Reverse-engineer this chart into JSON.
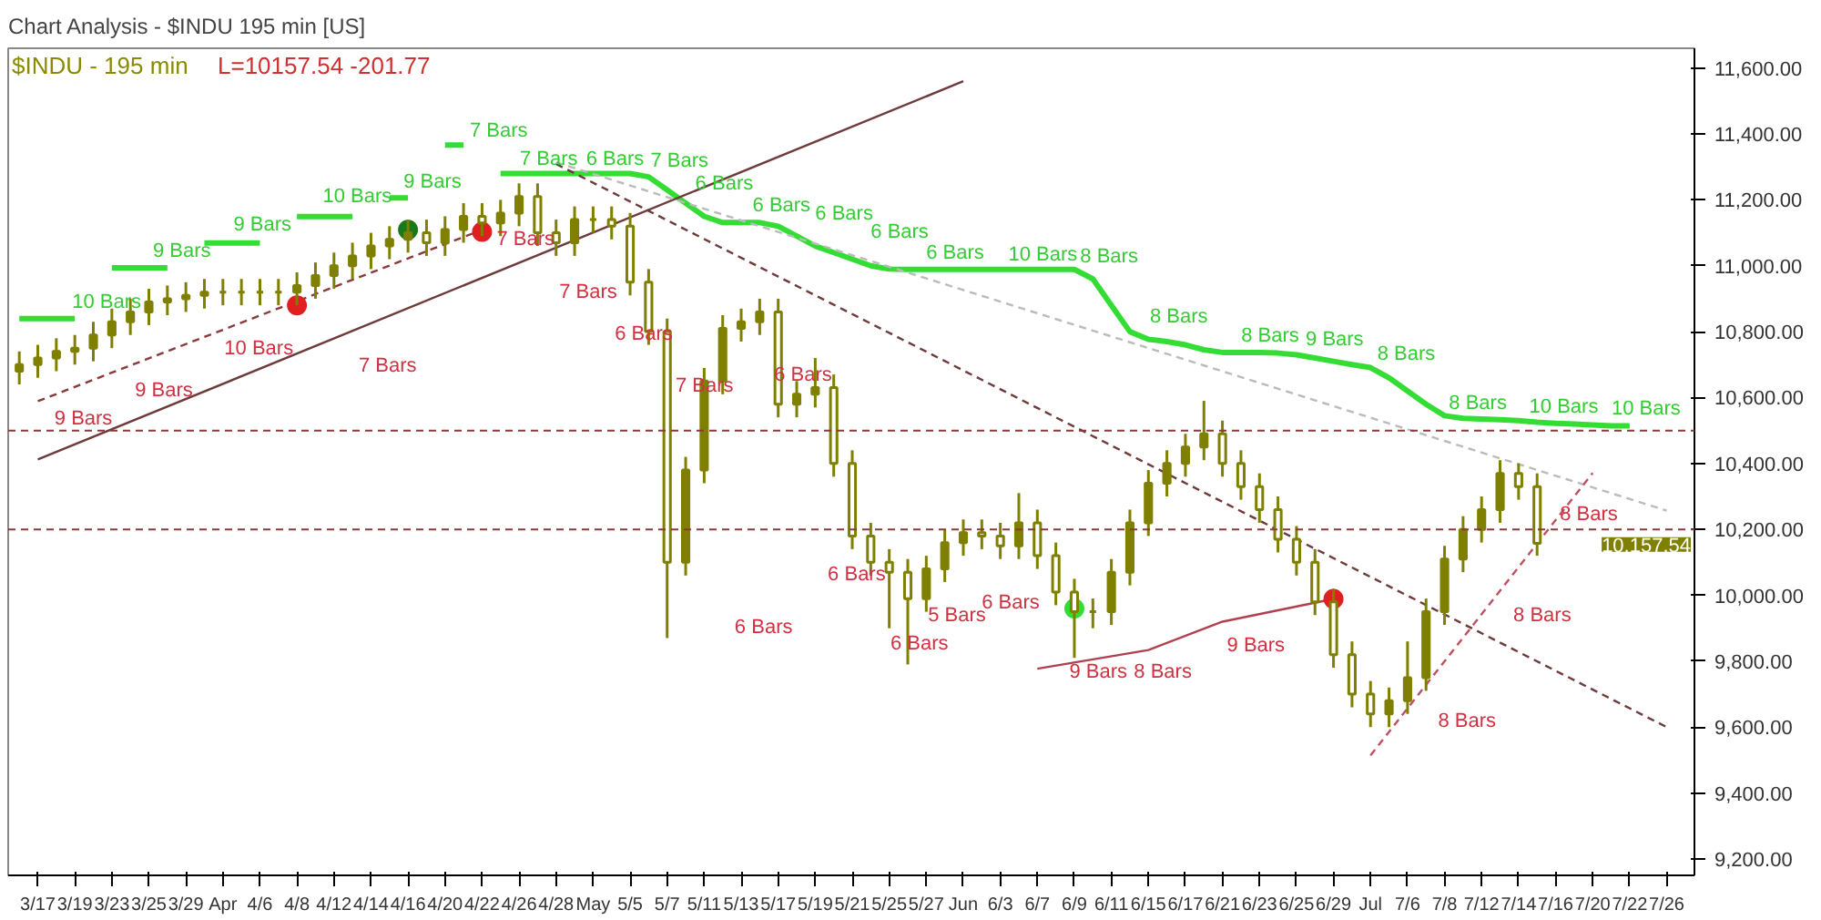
{
  "chart_data": {
    "type": "candlestick",
    "title": "Chart Analysis - $INDU 195 min [US]",
    "subtitle": "$INDU - 195 min",
    "categories": [
      null,
      "3/17",
      null,
      "3/19",
      null,
      "3/23",
      null,
      "3/25",
      null,
      "3/29",
      null,
      "Apr",
      null,
      "4/6",
      null,
      "4/8",
      null,
      "4/12",
      null,
      "4/14",
      null,
      "4/16",
      null,
      "4/20",
      null,
      "4/22",
      null,
      "4/26",
      null,
      "4/28",
      null,
      "May",
      null,
      "5/5",
      null,
      "5/7",
      null,
      "5/11",
      null,
      "5/13",
      null,
      "5/17",
      null,
      "5/19",
      null,
      "5/21",
      null,
      "5/25",
      null,
      "5/27",
      null,
      "Jun",
      null,
      "6/3",
      null,
      "6/7",
      null,
      "6/9",
      null,
      "6/11",
      null,
      "6/15",
      null,
      "6/17",
      null,
      "6/21",
      null,
      "6/23",
      null,
      "6/25",
      null,
      "6/29",
      null,
      "Jul",
      null,
      "7/6",
      null,
      "7/8",
      null,
      "7/12",
      null,
      "7/14",
      null,
      "7/16",
      null,
      "7/20",
      null,
      "7/22",
      null,
      "7/26",
      null
    ],
    "color": "#7f7f00",
    "ohlc": [
      [
        10680,
        10740,
        10640,
        10700
      ],
      [
        10700,
        10760,
        10660,
        10720
      ],
      [
        10720,
        10780,
        10680,
        10740
      ],
      [
        10740,
        10790,
        10700,
        10750
      ],
      [
        10750,
        10830,
        10710,
        10790
      ],
      [
        10790,
        10870,
        10750,
        10830
      ],
      [
        10830,
        10900,
        10790,
        10860
      ],
      [
        10860,
        10930,
        10820,
        10890
      ],
      [
        10890,
        10940,
        10850,
        10900
      ],
      [
        10900,
        10950,
        10860,
        10910
      ],
      [
        10910,
        10960,
        10870,
        10920
      ],
      [
        10920,
        10960,
        10880,
        10920
      ],
      [
        10920,
        10960,
        10880,
        10920
      ],
      [
        10920,
        10960,
        10880,
        10920
      ],
      [
        10920,
        10960,
        10880,
        10920
      ],
      [
        10920,
        10980,
        10880,
        10940
      ],
      [
        10940,
        11010,
        10900,
        10970
      ],
      [
        10970,
        11040,
        10930,
        11000
      ],
      [
        11000,
        11070,
        10960,
        11030
      ],
      [
        11030,
        11100,
        10990,
        11060
      ],
      [
        11060,
        11120,
        11020,
        11080
      ],
      [
        11080,
        11140,
        11040,
        11100
      ],
      [
        11100,
        11140,
        11030,
        11070
      ],
      [
        11070,
        11150,
        11030,
        11110
      ],
      [
        11110,
        11190,
        11070,
        11150
      ],
      [
        11150,
        11190,
        11090,
        11130
      ],
      [
        11130,
        11200,
        11090,
        11160
      ],
      [
        11160,
        11250,
        11120,
        11210
      ],
      [
        11210,
        11250,
        11060,
        11100
      ],
      [
        11100,
        11140,
        11030,
        11070
      ],
      [
        11070,
        11180,
        11030,
        11140
      ],
      [
        11140,
        11180,
        11100,
        11140
      ],
      [
        11140,
        11180,
        11080,
        11120
      ],
      [
        11120,
        11160,
        10910,
        10950
      ],
      [
        10950,
        10990,
        10760,
        10800
      ],
      [
        10800,
        10840,
        9870,
        10100
      ],
      [
        10100,
        10420,
        10060,
        10380
      ],
      [
        10380,
        10690,
        10340,
        10650
      ],
      [
        10650,
        10850,
        10610,
        10810
      ],
      [
        10810,
        10870,
        10770,
        10830
      ],
      [
        10830,
        10900,
        10790,
        10860
      ],
      [
        10860,
        10900,
        10540,
        10580
      ],
      [
        10580,
        10650,
        10540,
        10610
      ],
      [
        10610,
        10720,
        10570,
        10630
      ],
      [
        10630,
        10670,
        10360,
        10400
      ],
      [
        10400,
        10440,
        10140,
        10180
      ],
      [
        10180,
        10220,
        10060,
        10100
      ],
      [
        10100,
        10140,
        9900,
        10070
      ],
      [
        10070,
        10110,
        9790,
        9990
      ],
      [
        9990,
        10120,
        9950,
        10080
      ],
      [
        10080,
        10200,
        10040,
        10160
      ],
      [
        10160,
        10230,
        10120,
        10190
      ],
      [
        10190,
        10230,
        10140,
        10180
      ],
      [
        10180,
        10220,
        10110,
        10150
      ],
      [
        10150,
        10310,
        10110,
        10220
      ],
      [
        10220,
        10260,
        10080,
        10120
      ],
      [
        10120,
        10160,
        9970,
        10010
      ],
      [
        10010,
        10050,
        9810,
        9950
      ],
      [
        9950,
        9990,
        9900,
        9950
      ],
      [
        9950,
        10110,
        9910,
        10070
      ],
      [
        10070,
        10260,
        10030,
        10220
      ],
      [
        10220,
        10380,
        10180,
        10340
      ],
      [
        10340,
        10440,
        10300,
        10400
      ],
      [
        10400,
        10490,
        10360,
        10450
      ],
      [
        10450,
        10590,
        10410,
        10490
      ],
      [
        10490,
        10530,
        10360,
        10400
      ],
      [
        10400,
        10440,
        10290,
        10330
      ],
      [
        10330,
        10370,
        10220,
        10260
      ],
      [
        10260,
        10300,
        10130,
        10170
      ],
      [
        10170,
        10210,
        10060,
        10100
      ],
      [
        10100,
        10140,
        9940,
        9980
      ],
      [
        9980,
        10020,
        9780,
        9820
      ],
      [
        9820,
        9860,
        9660,
        9700
      ],
      [
        9700,
        9740,
        9600,
        9640
      ],
      [
        9640,
        9720,
        9600,
        9680
      ],
      [
        9680,
        9860,
        9640,
        9750
      ],
      [
        9750,
        9990,
        9710,
        9950
      ],
      [
        9950,
        10150,
        9910,
        10110
      ],
      [
        10110,
        10240,
        10070,
        10200
      ],
      [
        10200,
        10300,
        10160,
        10260
      ],
      [
        10260,
        10410,
        10220,
        10370
      ],
      [
        10370,
        10400,
        10290,
        10330
      ],
      [
        10330,
        10370,
        10120,
        10157.54
      ],
      null,
      null,
      null,
      null,
      null,
      null,
      null,
      null
    ],
    "series": [
      {
        "type": "line",
        "color": "#33dd33",
        "values": [
          10840,
          10840,
          10840,
          10840,
          null,
          10994,
          10994,
          10994,
          10994,
          null,
          11069,
          11069,
          11069,
          11069,
          null,
          11149,
          11149,
          11149,
          11149,
          null,
          11206,
          11206,
          null,
          11366,
          11366,
          null,
          11280,
          11280,
          11280,
          11280,
          11280,
          11280,
          11280,
          11280,
          11270,
          11230,
          11190,
          11150,
          11131,
          11131,
          11131,
          11120,
          11090,
          11060,
          11040,
          11020,
          11000,
          10990,
          10989,
          10989,
          10989,
          10989,
          10989,
          10989,
          10989,
          10989,
          10989,
          10989,
          10960,
          10880,
          10800,
          10777,
          10770,
          10760,
          10745,
          10737,
          10737,
          10737,
          10735,
          10730,
          10720,
          10710,
          10700,
          10691,
          10660,
          10620,
          10580,
          10545,
          10537,
          10535,
          10533,
          10530,
          10525,
          10522,
          10520,
          10517,
          10514,
          10514,
          null,
          null,
          null
        ],
        "marker": "none"
      },
      {
        "type": "line",
        "color": "#6e3b3b",
        "line_style": "solid",
        "x": [
          "3/17",
          "Jun"
        ],
        "values": [
          10412,
          11560
        ]
      },
      {
        "type": "line",
        "color": "#8b3a3a",
        "line_style": "dashed",
        "x": [
          "3/17",
          "4/22"
        ],
        "values": [
          10589,
          11109
        ]
      },
      {
        "type": "line",
        "color": "#6e3b3b",
        "line_style": "dashed",
        "x": [
          "4/28",
          "7/26"
        ],
        "values": [
          11309,
          9600
        ]
      },
      {
        "type": "line",
        "color": "#bbbbbb",
        "line_style": "dashed",
        "x": [
          "4/28",
          "7/26"
        ],
        "values": [
          11314,
          10257
        ]
      },
      {
        "type": "line",
        "color": "#c05060",
        "line_style": "dashed",
        "x": [
          "Jul",
          "7/20"
        ],
        "values": [
          9514,
          10371
        ]
      },
      {
        "type": "line",
        "color": "#b04050",
        "line_style": "solid",
        "x": [
          "6/7",
          "6/15",
          "6/21",
          "6/29"
        ],
        "values": [
          9777,
          9834,
          9920,
          9989
        ]
      },
      {
        "type": "scatter",
        "x": [
          "4/8",
          "4/16",
          "4/22",
          "6/9",
          "6/29"
        ],
        "values": [
          10880,
          11109,
          11103,
          9960,
          9989
        ],
        "colors": [
          "#e02020",
          "#1a7a1a",
          "#e02020",
          "#33dd33",
          "#e02020"
        ]
      }
    ],
    "ref_lines": [
      {
        "axis": "y",
        "value": 10200,
        "color": "#8b3a3a",
        "line_style": "dashed"
      },
      {
        "axis": "y",
        "value": 10500,
        "color": "#8b3a3a",
        "line_style": "dashed"
      }
    ],
    "annotations": [
      "L=10157.54 -201.77",
      "10,157.54",
      "10 Bars",
      "9 Bars",
      "9 Bars",
      "10 Bars",
      "9 Bars",
      "7 Bars",
      "7 Bars",
      "6 Bars",
      "7 Bars",
      "6 Bars",
      "6 Bars",
      "6 Bars",
      "6 Bars",
      "6 Bars",
      "10 Bars",
      "8 Bars",
      "8 Bars",
      "8 Bars",
      "9 Bars",
      "8 Bars",
      "8 Bars",
      "10 Bars",
      "10 Bars",
      "9 Bars",
      "9 Bars",
      "10 Bars",
      "7 Bars",
      "7 Bars",
      "7 Bars",
      "6 Bars",
      "7 Bars",
      "6 Bars",
      "6 Bars",
      "6 Bars",
      "6 Bars",
      "5 Bars",
      "6 Bars",
      "9 Bars",
      "8 Bars",
      "9 Bars",
      "8 Bars",
      "8 Bars",
      "8 Bars"
    ],
    "ylim": [
      9150,
      11660
    ],
    "yticks": [
      {
        "value": 9200,
        "label": "9,200.00"
      },
      {
        "value": 9400,
        "label": "9,400.00"
      },
      {
        "value": 9600,
        "label": "9,600.00"
      },
      {
        "value": 9800,
        "label": "9,800.00"
      },
      {
        "value": 10000,
        "label": "10,000.00"
      },
      {
        "value": 10200,
        "label": "10,200.00"
      },
      {
        "value": 10400,
        "label": "10,400.00"
      },
      {
        "value": 10600,
        "label": "10,600.00"
      },
      {
        "value": 10800,
        "label": "10,800.00"
      },
      {
        "value": 11000,
        "label": "11,000.00"
      },
      {
        "value": 11200,
        "label": "11,200.00"
      },
      {
        "value": 11400,
        "label": "11,400.00"
      },
      {
        "value": 11600,
        "label": "11,600.00"
      }
    ],
    "grid": false
  }
}
